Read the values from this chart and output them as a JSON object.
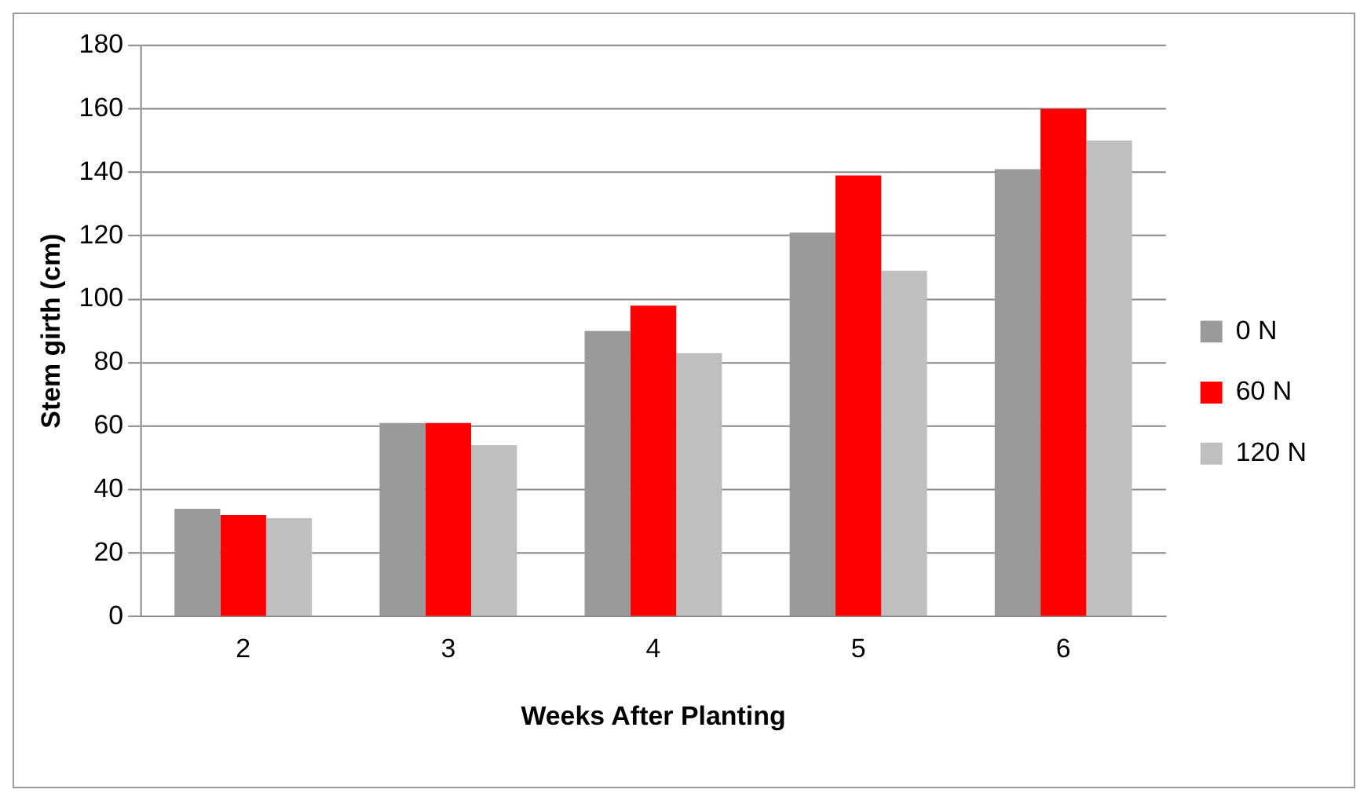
{
  "chart_data": {
    "type": "bar",
    "xlabel": "Weeks After Planting",
    "ylabel": "Stem girth (cm)",
    "categories": [
      "2",
      "3",
      "4",
      "5",
      "6"
    ],
    "series": [
      {
        "name": "0 N",
        "color": "#9a9a9a",
        "values": [
          34,
          61,
          90,
          121,
          141
        ]
      },
      {
        "name": "60 N",
        "color": "#ff0000",
        "values": [
          32,
          61,
          98,
          139,
          160
        ]
      },
      {
        "name": "120 N",
        "color": "#bfbfbf",
        "values": [
          31,
          54,
          83,
          109,
          150
        ]
      }
    ],
    "ylim": [
      0,
      180
    ],
    "yticks": [
      0,
      20,
      40,
      60,
      80,
      100,
      120,
      140,
      160,
      180
    ],
    "grid": "y",
    "legend": "right"
  }
}
